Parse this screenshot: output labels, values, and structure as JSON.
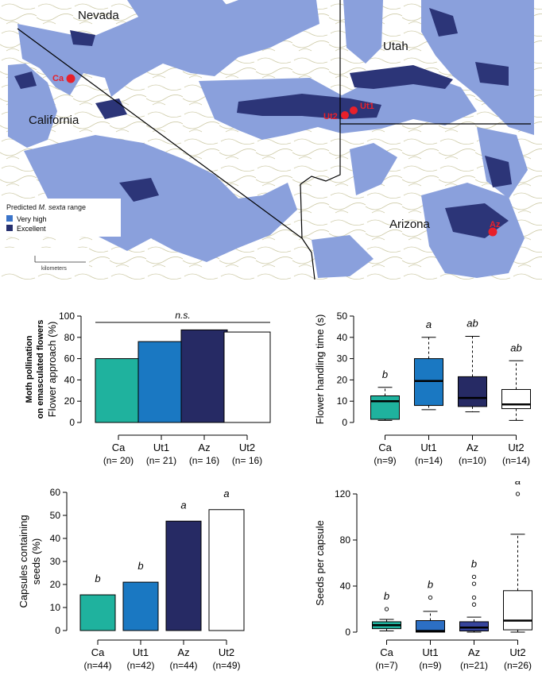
{
  "map": {
    "state_labels": [
      "Nevada",
      "Utah",
      "California",
      "Arizona"
    ],
    "legend": {
      "title_prefix": "Predicted ",
      "title_species": "M. sexta",
      "title_suffix": " range",
      "items": [
        {
          "label": "Very high",
          "color": "#3b74c9"
        },
        {
          "label": "Excellent",
          "color": "#262f6e"
        }
      ]
    },
    "scale_label": "kilometers",
    "sites": [
      "Ca",
      "Ut1",
      "Ut2",
      "Az"
    ],
    "colors": {
      "very_high": "#8aa0dc",
      "excellent": "#2c3578",
      "site": "#e8202a",
      "contour": "#c9c6a2"
    }
  },
  "chart_data": [
    {
      "type": "bar",
      "panel": "flower-approach",
      "ylabel_top": "Moth pollination",
      "ylabel_mid": "on emasculated flowers",
      "ylabel": "Flower approach (%)",
      "categories": [
        "Ca",
        "Ut1",
        "Az",
        "Ut2"
      ],
      "sample_sizes": [
        "(n= 20)",
        "(n= 21)",
        "(n= 16)",
        "(n= 16)"
      ],
      "values": [
        60,
        76,
        87,
        85
      ],
      "colors": [
        "#1fb29e",
        "#1a78c2",
        "#262a64",
        "#ffffff"
      ],
      "ylim": [
        0,
        100
      ],
      "yticks": [
        0,
        20,
        40,
        60,
        80,
        100
      ],
      "annotation": "n.s."
    },
    {
      "type": "box",
      "panel": "handling-time",
      "ylabel": "Flower handling time (s)",
      "categories": [
        "Ca",
        "Ut1",
        "Az",
        "Ut2"
      ],
      "sample_sizes": [
        "(n=9)",
        "(n=14)",
        "(n=10)",
        "(n=14)"
      ],
      "letters": [
        "b",
        "a",
        "ab",
        "ab"
      ],
      "boxes": [
        {
          "low": 1,
          "q1": 1.5,
          "median": 10,
          "q3": 12.5,
          "high": 16.5,
          "outliers": []
        },
        {
          "low": 6,
          "q1": 8,
          "median": 19.5,
          "q3": 30,
          "high": 40,
          "outliers": []
        },
        {
          "low": 5,
          "q1": 7.5,
          "median": 11.5,
          "q3": 21.5,
          "high": 40.5,
          "outliers": []
        },
        {
          "low": 1,
          "q1": 6.5,
          "median": 8.5,
          "q3": 15.5,
          "high": 29,
          "outliers": []
        }
      ],
      "colors": [
        "#1fb29e",
        "#1a78c2",
        "#262a64",
        "#ffffff"
      ],
      "ylim": [
        0,
        50
      ],
      "yticks": [
        0,
        10,
        20,
        30,
        40,
        50
      ]
    },
    {
      "type": "bar",
      "panel": "capsules",
      "ylabel": "Capsules containing",
      "ylabel2": "seeds (%)",
      "categories": [
        "Ca",
        "Ut1",
        "Az",
        "Ut2"
      ],
      "sample_sizes": [
        "(n=44)",
        "(n=42)",
        "(n=44)",
        "(n=49)"
      ],
      "letters": [
        "b",
        "b",
        "a",
        "a"
      ],
      "values": [
        15.5,
        21,
        47.5,
        52.5
      ],
      "colors": [
        "#1fb29e",
        "#1a78c2",
        "#262a64",
        "#ffffff"
      ],
      "ylim": [
        0,
        60
      ],
      "yticks": [
        0,
        10,
        20,
        30,
        40,
        50,
        60
      ]
    },
    {
      "type": "box",
      "panel": "seeds",
      "ylabel": "Seeds per capsule",
      "categories": [
        "Ca",
        "Ut1",
        "Az",
        "Ut2"
      ],
      "sample_sizes": [
        "(n=7)",
        "(n=9)",
        "(n=21)",
        "(n=26)"
      ],
      "letters": [
        "b",
        "b",
        "b",
        "a"
      ],
      "boxes": [
        {
          "low": 1,
          "q1": 3,
          "median": 6,
          "q3": 9,
          "high": 11,
          "outliers": [
            20
          ]
        },
        {
          "low": 0,
          "q1": 0,
          "median": 1,
          "q3": 10,
          "high": 18,
          "outliers": [
            30
          ]
        },
        {
          "low": 0,
          "q1": 1,
          "median": 4,
          "q3": 9,
          "high": 13,
          "outliers": [
            24,
            30,
            42,
            48
          ]
        },
        {
          "low": 0,
          "q1": 2,
          "median": 10,
          "q3": 36,
          "high": 85,
          "outliers": [
            120
          ]
        }
      ],
      "colors": [
        "#1fb29e",
        "#2c6fc4",
        "#36449b",
        "#ffffff"
      ],
      "ylim": [
        0,
        120
      ],
      "yticks": [
        0,
        40,
        80,
        120
      ]
    }
  ]
}
